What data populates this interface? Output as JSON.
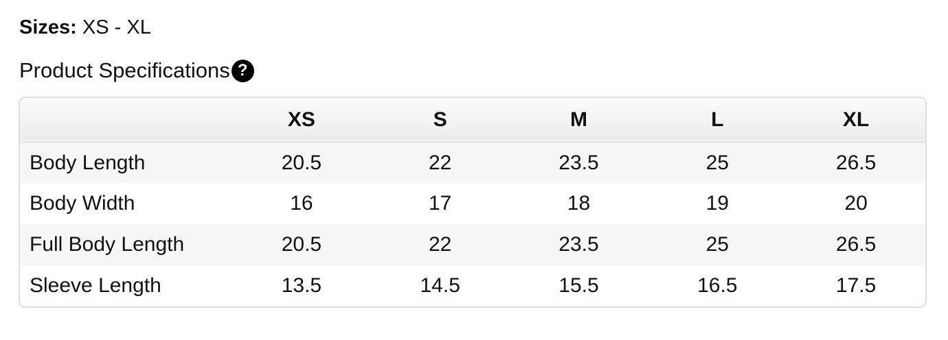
{
  "sizes": {
    "label": "Sizes:",
    "value": "XS - XL"
  },
  "specs": {
    "title": "Product Specifications",
    "help_icon": "question-circle-icon",
    "help_glyph": "?"
  },
  "table": {
    "columns": [
      "XS",
      "S",
      "M",
      "L",
      "XL"
    ],
    "rows": [
      {
        "label": "Body Length",
        "values": [
          "20.5",
          "22",
          "23.5",
          "25",
          "26.5"
        ]
      },
      {
        "label": "Body Width",
        "values": [
          "16",
          "17",
          "18",
          "19",
          "20"
        ]
      },
      {
        "label": "Full Body Length",
        "values": [
          "20.5",
          "22",
          "23.5",
          "25",
          "26.5"
        ]
      },
      {
        "label": "Sleeve Length",
        "values": [
          "13.5",
          "14.5",
          "15.5",
          "16.5",
          "17.5"
        ]
      }
    ]
  }
}
